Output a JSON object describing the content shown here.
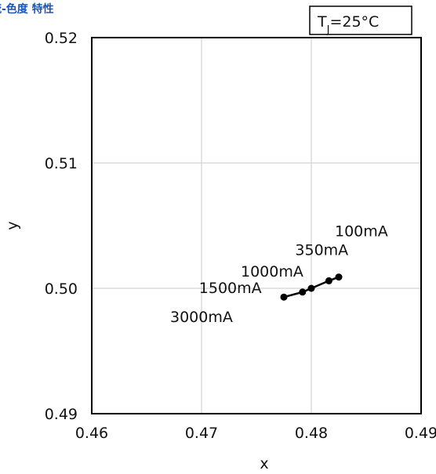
{
  "page": {
    "title": "電流-色度 特性"
  },
  "chart_data": {
    "type": "line",
    "title": "",
    "condition": {
      "main": "T",
      "sub": "J",
      "rest": "=25°C"
    },
    "xlabel": "x",
    "ylabel": "y",
    "xlim": [
      0.46,
      0.49
    ],
    "ylim": [
      0.49,
      0.52
    ],
    "xticks": [
      0.46,
      0.47,
      0.48,
      0.49
    ],
    "xtick_labels": [
      "0.46",
      "0.47",
      "0.48",
      "0.49"
    ],
    "yticks": [
      0.49,
      0.5,
      0.51,
      0.52
    ],
    "ytick_labels": [
      "0.49",
      "0.50",
      "0.51",
      "0.52"
    ],
    "grid": true,
    "series": [
      {
        "points": [
          {
            "x": 0.4825,
            "y": 0.5009,
            "label": "100mA"
          },
          {
            "x": 0.4816,
            "y": 0.5006,
            "label": "350mA"
          },
          {
            "x": 0.48,
            "y": 0.5,
            "label": "1000mA"
          },
          {
            "x": 0.4792,
            "y": 0.4997,
            "label": "1500mA"
          },
          {
            "x": 0.4775,
            "y": 0.4993,
            "label": "3000mA"
          }
        ]
      }
    ],
    "colors": {
      "line": "#000000",
      "marker": "#000000",
      "grid": "#c8c8c8",
      "title": "#1a56b8"
    }
  }
}
